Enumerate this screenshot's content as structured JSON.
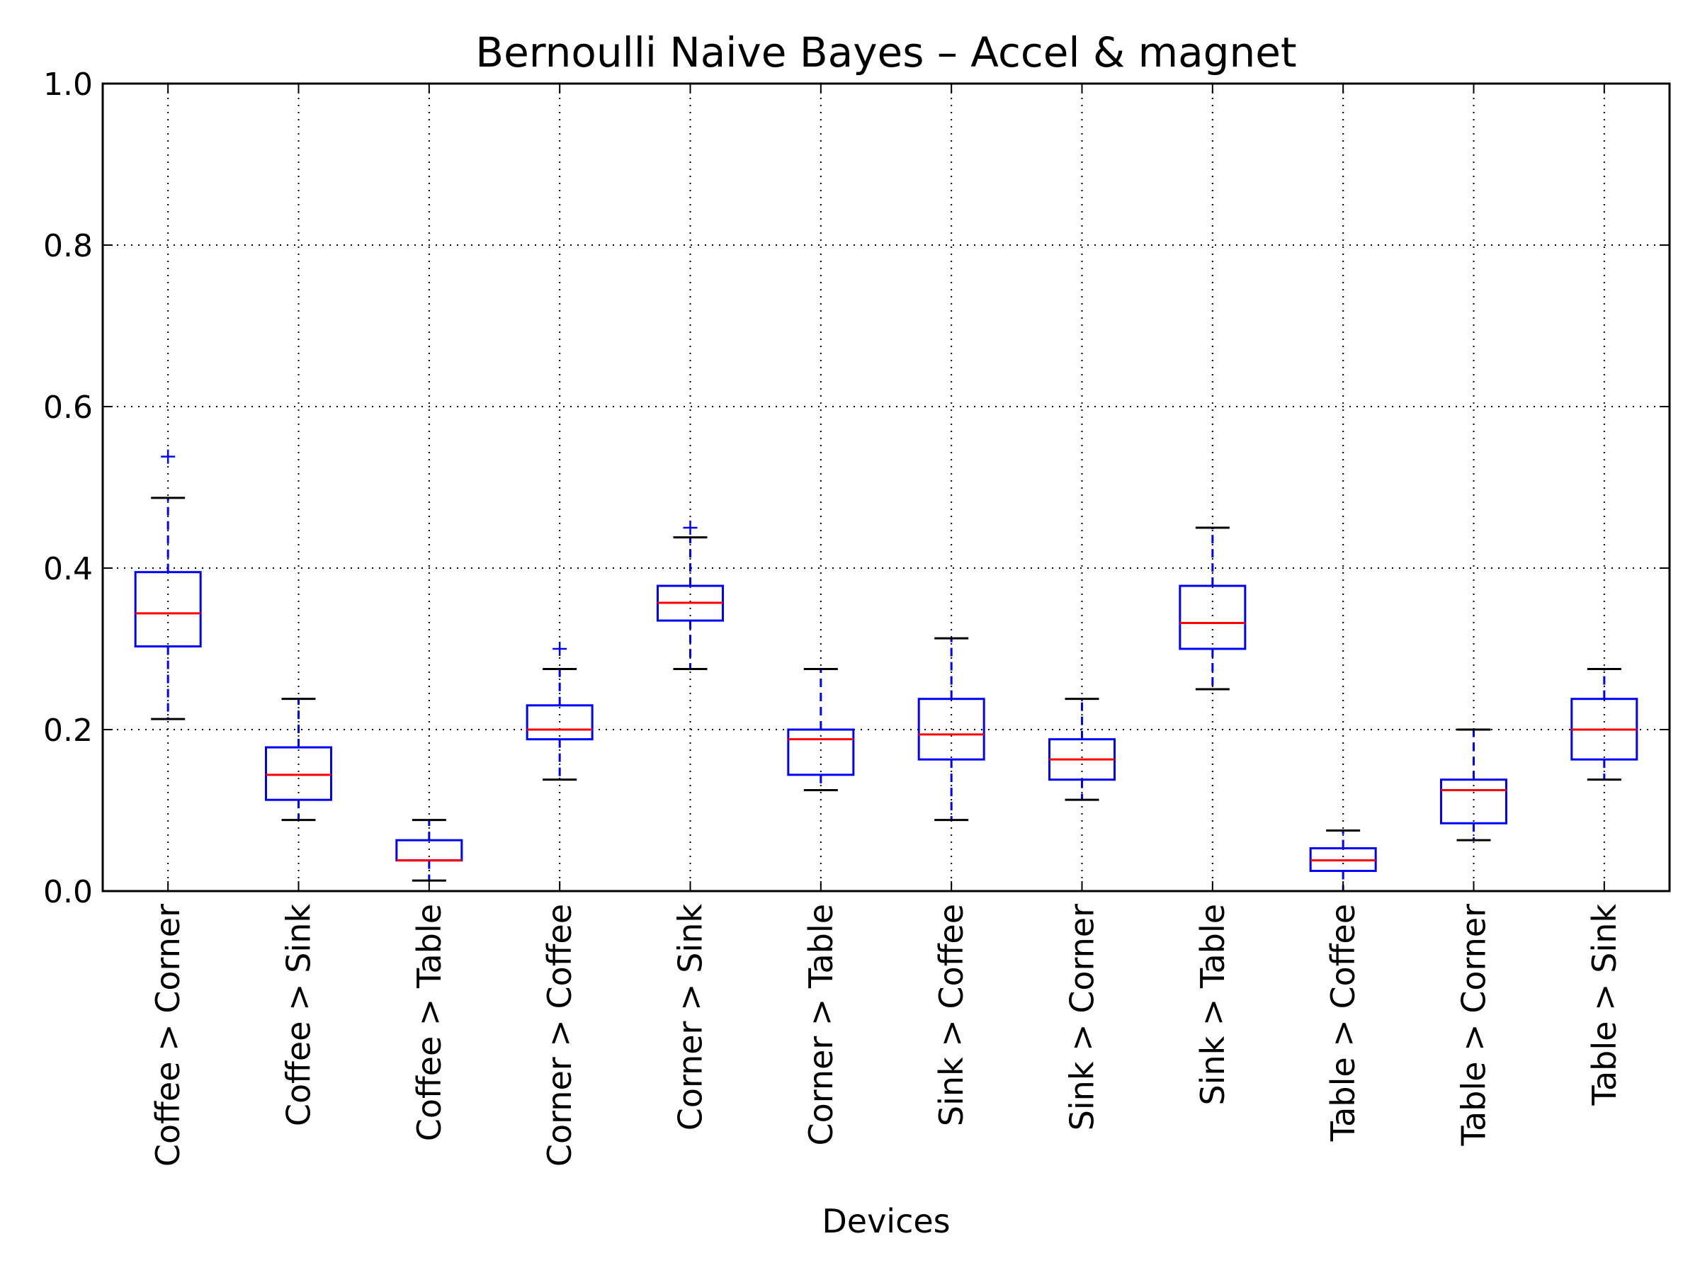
{
  "chart_data": {
    "type": "box",
    "title": "Bernoulli Naive Bayes – Accel & magnet",
    "xlabel": "Devices",
    "ylabel": "",
    "ylim": [
      0.0,
      1.0
    ],
    "yticks": [
      "0.0",
      "0.2",
      "0.4",
      "0.6",
      "0.8",
      "1.0"
    ],
    "grid": true,
    "categories": [
      "Coffee > Corner",
      "Coffee > Sink",
      "Coffee > Table",
      "Corner > Coffee",
      "Corner > Sink",
      "Corner > Table",
      "Sink > Coffee",
      "Sink > Corner",
      "Sink > Table",
      "Table > Coffee",
      "Table > Corner",
      "Table > Sink"
    ],
    "boxes": [
      {
        "whisker_low": 0.213,
        "q1": 0.303,
        "median": 0.344,
        "q3": 0.395,
        "whisker_high": 0.487,
        "outliers": [
          0.538
        ]
      },
      {
        "whisker_low": 0.088,
        "q1": 0.113,
        "median": 0.144,
        "q3": 0.178,
        "whisker_high": 0.238,
        "outliers": []
      },
      {
        "whisker_low": 0.013,
        "q1": 0.038,
        "median": 0.038,
        "q3": 0.063,
        "whisker_high": 0.088,
        "outliers": []
      },
      {
        "whisker_low": 0.138,
        "q1": 0.188,
        "median": 0.2,
        "q3": 0.23,
        "whisker_high": 0.275,
        "outliers": [
          0.3
        ]
      },
      {
        "whisker_low": 0.275,
        "q1": 0.335,
        "median": 0.357,
        "q3": 0.378,
        "whisker_high": 0.438,
        "outliers": [
          0.45
        ]
      },
      {
        "whisker_low": 0.125,
        "q1": 0.144,
        "median": 0.188,
        "q3": 0.2,
        "whisker_high": 0.275,
        "outliers": []
      },
      {
        "whisker_low": 0.088,
        "q1": 0.163,
        "median": 0.194,
        "q3": 0.238,
        "whisker_high": 0.313,
        "outliers": []
      },
      {
        "whisker_low": 0.113,
        "q1": 0.138,
        "median": 0.163,
        "q3": 0.188,
        "whisker_high": 0.238,
        "outliers": []
      },
      {
        "whisker_low": 0.25,
        "q1": 0.3,
        "median": 0.332,
        "q3": 0.378,
        "whisker_high": 0.45,
        "outliers": []
      },
      {
        "whisker_low": 0.0,
        "q1": 0.025,
        "median": 0.038,
        "q3": 0.053,
        "whisker_high": 0.075,
        "outliers": []
      },
      {
        "whisker_low": 0.063,
        "q1": 0.084,
        "median": 0.125,
        "q3": 0.138,
        "whisker_high": 0.2,
        "outliers": []
      },
      {
        "whisker_low": 0.138,
        "q1": 0.163,
        "median": 0.2,
        "q3": 0.238,
        "whisker_high": 0.275,
        "outliers": []
      }
    ],
    "colors": {
      "box": "#0000ff",
      "median": "#ff0000",
      "cap": "#000000",
      "outlier": "#0000ff",
      "grid": "#000000"
    }
  }
}
